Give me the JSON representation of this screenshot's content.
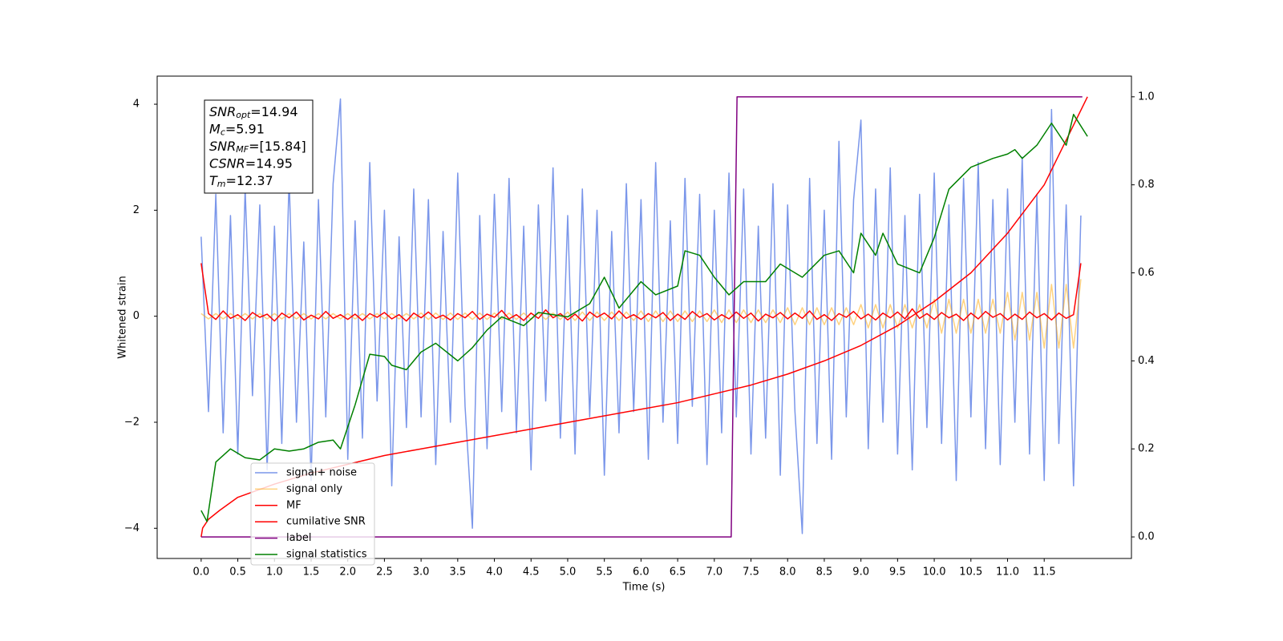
{
  "chart_data": {
    "type": "line",
    "xlabel": "Time (s)",
    "ylabel": "Whitened strain",
    "xlim": [
      -0.6,
      12.69
    ],
    "ylim": [
      -4.57,
      4.53
    ],
    "y2lim": [
      -0.049,
      1.047
    ],
    "xticks": [
      {
        "value": 0,
        "label": "0.0"
      },
      0.5,
      {
        "value": 1,
        "label": "1.0"
      },
      1.5,
      {
        "value": 2,
        "label": "2.0"
      },
      2.5,
      {
        "value": 3,
        "label": "3.0"
      },
      3.5,
      {
        "value": 4,
        "label": "4.0"
      },
      4.5,
      {
        "value": 5,
        "label": "5.0"
      },
      5.5,
      {
        "value": 6,
        "label": "6.0"
      },
      6.5,
      {
        "value": 7,
        "label": "7.0"
      },
      7.5,
      {
        "value": 8,
        "label": "8.0"
      },
      8.5,
      {
        "value": 9,
        "label": "9.0"
      },
      9.5,
      {
        "value": 10,
        "label": "10.0"
      },
      10.5,
      {
        "value": 11,
        "label": "11.0"
      },
      11.5
    ],
    "yticks": [
      {
        "value": -4,
        "label": "−4"
      },
      {
        "value": -2,
        "label": "−2"
      },
      0,
      2,
      4
    ],
    "y2ticks": [
      {
        "value": 0,
        "label": "0.0"
      },
      0.2,
      0.4,
      0.6,
      0.8,
      {
        "value": 1,
        "label": "1.0"
      }
    ],
    "legend": "lower left",
    "annotation": [
      {
        "main": "SNR",
        "sub": "opt",
        "rest": "=14.94"
      },
      {
        "main": "M",
        "sub": "c",
        "rest": "=5.91"
      },
      {
        "main": "SNR",
        "sub": "MF",
        "rest": "=[15.84]"
      },
      {
        "main": "CSNR",
        "rest": "=14.95"
      },
      {
        "main": "T",
        "sub": "m",
        "rest": "=12.37"
      }
    ],
    "x": [
      0,
      0.1,
      0.2,
      0.3,
      0.4,
      0.5,
      0.6,
      0.7,
      0.8,
      0.9,
      1.0,
      1.1,
      1.2,
      1.3,
      1.4,
      1.5,
      1.6,
      1.7,
      1.8,
      1.9,
      2.0,
      2.1,
      2.2,
      2.3,
      2.4,
      2.5,
      2.6,
      2.7,
      2.8,
      2.9,
      3.0,
      3.1,
      3.2,
      3.3,
      3.4,
      3.5,
      3.6,
      3.7,
      3.8,
      3.9,
      4.0,
      4.1,
      4.2,
      4.3,
      4.4,
      4.5,
      4.6,
      4.7,
      4.8,
      4.9,
      5.0,
      5.1,
      5.2,
      5.3,
      5.4,
      5.5,
      5.6,
      5.7,
      5.8,
      5.9,
      6.0,
      6.1,
      6.2,
      6.3,
      6.4,
      6.5,
      6.6,
      6.7,
      6.8,
      6.9,
      7.0,
      7.1,
      7.2,
      7.3,
      7.4,
      7.5,
      7.6,
      7.7,
      7.8,
      7.9,
      8.0,
      8.1,
      8.2,
      8.3,
      8.4,
      8.5,
      8.6,
      8.7,
      8.8,
      8.9,
      9.0,
      9.1,
      9.2,
      9.3,
      9.4,
      9.5,
      9.6,
      9.7,
      9.8,
      9.9,
      10.0,
      10.1,
      10.2,
      10.3,
      10.4,
      10.5,
      10.6,
      10.7,
      10.8,
      10.9,
      11.0,
      11.1,
      11.2,
      11.3,
      11.4,
      11.5,
      11.6,
      11.7,
      11.8,
      11.9,
      12.0
    ],
    "series": [
      {
        "name": "signal+ noise",
        "color": "#4169e1",
        "alpha": 0.7,
        "axis": "y",
        "values": [
          1.5,
          -1.8,
          2.3,
          -2.2,
          1.9,
          -2.6,
          2.4,
          -1.5,
          2.1,
          -2.9,
          1.7,
          -2.4,
          2.6,
          -2.0,
          1.4,
          -3.1,
          2.2,
          -1.9,
          2.5,
          4.1,
          -2.7,
          1.8,
          -2.3,
          2.9,
          -1.6,
          2.0,
          -3.2,
          1.5,
          -2.1,
          2.4,
          -1.9,
          2.2,
          -2.8,
          1.6,
          -2.0,
          2.7,
          -1.7,
          -4.0,
          1.9,
          -2.5,
          2.3,
          -1.8,
          2.6,
          -2.2,
          1.7,
          -2.9,
          2.1,
          -1.6,
          2.8,
          -2.3,
          1.9,
          -2.6,
          2.4,
          -1.9,
          2.0,
          -3.0,
          1.6,
          -2.2,
          2.5,
          -1.8,
          2.2,
          -2.7,
          2.9,
          -2.0,
          1.8,
          -2.4,
          2.6,
          -1.7,
          2.3,
          -2.8,
          2.0,
          -2.2,
          2.7,
          -1.9,
          2.4,
          -2.6,
          1.7,
          -2.3,
          2.5,
          -3.0,
          2.1,
          -1.8,
          -4.1,
          2.6,
          -2.4,
          2.0,
          -2.7,
          3.3,
          -1.9,
          2.2,
          3.7,
          -2.5,
          2.4,
          -2.0,
          2.8,
          -2.6,
          1.9,
          -2.9,
          2.3,
          -2.1,
          2.7,
          -2.4,
          2.1,
          -3.1,
          2.6,
          -1.9,
          2.9,
          -2.5,
          2.2,
          -2.8,
          2.4,
          -2.0,
          3.0,
          -2.6,
          2.3,
          -3.1,
          3.9,
          -2.4,
          2.1,
          -3.2,
          1.9
        ]
      },
      {
        "name": "signal only",
        "color": "#ffa500",
        "alpha": 0.5,
        "axis": "y",
        "values": [
          0.05,
          -0.05,
          0.05,
          -0.05,
          0.05,
          -0.05,
          0.05,
          -0.05,
          0.05,
          -0.05,
          0.05,
          -0.05,
          0.05,
          -0.05,
          0.05,
          -0.05,
          0.05,
          -0.05,
          0.05,
          -0.05,
          0.05,
          -0.05,
          0.05,
          -0.05,
          0.05,
          -0.05,
          0.05,
          -0.05,
          0.05,
          -0.05,
          0.06,
          -0.06,
          0.06,
          -0.06,
          0.06,
          -0.06,
          0.06,
          -0.06,
          0.06,
          -0.06,
          0.06,
          -0.06,
          0.06,
          -0.06,
          0.06,
          -0.06,
          0.06,
          -0.06,
          0.06,
          -0.06,
          0.08,
          -0.08,
          0.08,
          -0.08,
          0.08,
          -0.08,
          0.08,
          -0.08,
          0.08,
          -0.08,
          0.1,
          -0.1,
          0.1,
          -0.1,
          0.1,
          -0.1,
          0.1,
          -0.1,
          0.1,
          -0.1,
          0.12,
          -0.12,
          0.12,
          -0.12,
          0.12,
          -0.12,
          0.12,
          -0.12,
          0.12,
          -0.12,
          0.16,
          -0.16,
          0.16,
          -0.16,
          0.16,
          -0.16,
          0.16,
          -0.16,
          0.16,
          -0.16,
          0.22,
          -0.22,
          0.22,
          -0.22,
          0.22,
          -0.22,
          0.22,
          -0.22,
          0.22,
          -0.22,
          0.32,
          -0.32,
          0.32,
          -0.32,
          0.32,
          -0.32,
          0.32,
          -0.32,
          0.32,
          -0.32,
          0.45,
          -0.45,
          0.45,
          -0.45,
          0.45,
          -0.6,
          0.6,
          -0.6,
          0.6,
          -0.6,
          0.7
        ]
      },
      {
        "name": "MF",
        "color": "#ff0000",
        "alpha": 1,
        "axis": "y",
        "values": [
          1.0,
          0.05,
          -0.06,
          0.1,
          -0.04,
          0.03,
          -0.08,
          0.07,
          -0.02,
          0.04,
          -0.09,
          0.06,
          -0.03,
          0.08,
          -0.07,
          0.02,
          -0.05,
          0.09,
          -0.04,
          0.03,
          -0.06,
          0.04,
          -0.08,
          0.05,
          -0.02,
          0.07,
          -0.05,
          0.03,
          -0.09,
          0.06,
          -0.03,
          0.08,
          -0.04,
          0.02,
          -0.07,
          0.05,
          -0.03,
          0.09,
          -0.06,
          0.04,
          -0.02,
          0.11,
          -0.05,
          0.03,
          -0.08,
          0.06,
          -0.04,
          0.12,
          -0.03,
          0.05,
          -0.07,
          0.04,
          -0.09,
          0.08,
          -0.02,
          0.06,
          -0.05,
          0.1,
          -0.04,
          0.03,
          -0.06,
          0.05,
          -0.03,
          0.07,
          -0.08,
          0.04,
          -0.06,
          0.09,
          -0.02,
          0.05,
          -0.07,
          0.03,
          -0.05,
          0.08,
          -0.04,
          0.06,
          -0.09,
          0.04,
          -0.03,
          0.07,
          -0.05,
          0.06,
          -0.04,
          0.1,
          -0.06,
          0.03,
          -0.08,
          0.05,
          -0.02,
          0.09,
          -0.05,
          0.04,
          -0.07,
          0.06,
          -0.03,
          0.08,
          -0.05,
          0.14,
          -0.04,
          0.05,
          -0.06,
          0.07,
          -0.03,
          0.04,
          -0.08,
          0.06,
          -0.05,
          0.09,
          -0.02,
          0.05,
          -0.07,
          0.04,
          -0.06,
          0.08,
          -0.03,
          0.05,
          -0.07,
          0.06,
          -0.04,
          0.03,
          1.0
        ]
      },
      {
        "name": "cumilative SNR",
        "color": "#ff0000",
        "alpha": 1,
        "axis": "y2",
        "x": [
          0,
          0.02,
          0.1,
          0.25,
          0.5,
          1,
          1.5,
          2,
          2.5,
          3,
          3.5,
          4,
          4.5,
          5,
          5.5,
          6,
          6.5,
          7,
          7.5,
          8,
          8.5,
          9,
          9.5,
          10,
          10.5,
          11,
          11.5,
          12.09
        ],
        "values": [
          0,
          0.02,
          0.04,
          0.06,
          0.09,
          0.12,
          0.145,
          0.165,
          0.185,
          0.2,
          0.215,
          0.23,
          0.245,
          0.26,
          0.275,
          0.29,
          0.305,
          0.325,
          0.345,
          0.37,
          0.4,
          0.435,
          0.48,
          0.535,
          0.6,
          0.69,
          0.8,
          1.0
        ]
      },
      {
        "name": "label",
        "color": "#800080",
        "alpha": 1,
        "axis": "y2",
        "x": [
          0,
          7.23,
          7.31,
          12.02
        ],
        "values": [
          0,
          0,
          1,
          1
        ]
      },
      {
        "name": "signal statistics",
        "color": "#008000",
        "alpha": 1,
        "axis": "y2",
        "x": [
          0,
          0.08,
          0.2,
          0.4,
          0.6,
          0.8,
          1.0,
          1.2,
          1.4,
          1.6,
          1.8,
          1.9,
          2.1,
          2.3,
          2.5,
          2.6,
          2.8,
          3.0,
          3.2,
          3.5,
          3.7,
          3.9,
          4.1,
          4.4,
          4.6,
          5.0,
          5.3,
          5.5,
          5.7,
          6.0,
          6.2,
          6.5,
          6.6,
          6.8,
          7.0,
          7.2,
          7.4,
          7.7,
          7.9,
          8.2,
          8.5,
          8.7,
          8.9,
          9.0,
          9.2,
          9.3,
          9.5,
          9.8,
          9.9,
          10.0,
          10.2,
          10.5,
          10.8,
          11.0,
          11.1,
          11.2,
          11.4,
          11.6,
          11.8,
          11.9,
          12.09
        ],
        "values": [
          0.06,
          0.035,
          0.17,
          0.2,
          0.18,
          0.175,
          0.2,
          0.195,
          0.2,
          0.215,
          0.22,
          0.2,
          0.3,
          0.415,
          0.41,
          0.39,
          0.38,
          0.42,
          0.44,
          0.4,
          0.43,
          0.47,
          0.5,
          0.48,
          0.51,
          0.5,
          0.53,
          0.59,
          0.52,
          0.58,
          0.55,
          0.57,
          0.65,
          0.64,
          0.59,
          0.55,
          0.58,
          0.58,
          0.62,
          0.59,
          0.64,
          0.65,
          0.6,
          0.69,
          0.64,
          0.69,
          0.62,
          0.6,
          0.64,
          0.68,
          0.79,
          0.84,
          0.86,
          0.87,
          0.88,
          0.86,
          0.89,
          0.94,
          0.89,
          0.96,
          0.91
        ]
      }
    ]
  }
}
